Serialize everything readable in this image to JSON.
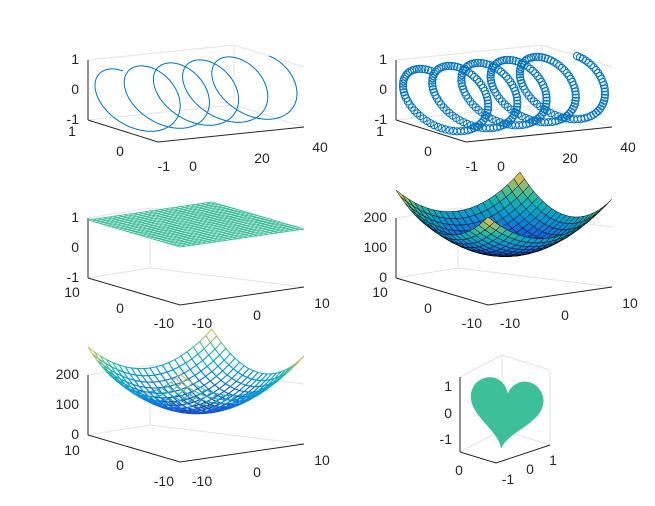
{
  "chart_data": [
    {
      "type": "3d-line",
      "title": "",
      "description_data": {
        "t_range": [
          0,
          10
        ],
        "turns": 5,
        "x": "t*4 (0..40)",
        "y": "sin",
        "z": "cos"
      },
      "axis_ranges": {
        "x": [
          0,
          40
        ],
        "y": [
          -1,
          1
        ],
        "z": [
          -1,
          1
        ]
      },
      "ticks": {
        "x": [
          "0",
          "20",
          "40"
        ],
        "y": [
          "-1",
          "0",
          "1"
        ],
        "z": [
          "-1",
          "0",
          "1"
        ]
      },
      "color": "#0072bd",
      "grid": false
    },
    {
      "type": "3d-scatter",
      "title": "",
      "axis_ranges": {
        "x": [
          0,
          40
        ],
        "y": [
          -1,
          1
        ],
        "z": [
          -1,
          1
        ]
      },
      "ticks": {
        "x": [
          "0",
          "20",
          "40"
        ],
        "y": [
          "-1",
          "0",
          "1"
        ],
        "z": [
          "-1",
          "0",
          "1"
        ]
      },
      "marker": "circle",
      "color": "#0072bd",
      "grid": false
    },
    {
      "type": "mesh",
      "title": "",
      "function": "z = 0",
      "axis_ranges": {
        "x": [
          -10,
          10
        ],
        "y": [
          -10,
          10
        ],
        "z": [
          -1,
          1
        ]
      },
      "ticks": {
        "x": [
          "-10",
          "0",
          "10"
        ],
        "y": [
          "-10",
          "0",
          "10"
        ],
        "z": [
          "-1",
          "0",
          "1"
        ]
      },
      "color": "#3dbf96",
      "grid": false
    },
    {
      "type": "surface",
      "title": "",
      "function": "z = x^2 + y^2",
      "axis_ranges": {
        "x": [
          -10,
          10
        ],
        "y": [
          -10,
          10
        ],
        "z": [
          0,
          200
        ]
      },
      "ticks": {
        "x": [
          "-10",
          "0",
          "10"
        ],
        "y": [
          "-10",
          "0",
          "10"
        ],
        "z": [
          "0",
          "100",
          "200"
        ]
      },
      "colormap": "parula",
      "grid": false
    },
    {
      "type": "mesh",
      "title": "",
      "function": "z = x^2 + y^2",
      "axis_ranges": {
        "x": [
          -10,
          10
        ],
        "y": [
          -10,
          10
        ],
        "z": [
          0,
          200
        ]
      },
      "ticks": {
        "x": [
          "-10",
          "0",
          "10"
        ],
        "y": [
          "-10",
          "0",
          "10"
        ],
        "z": [
          "0",
          "100",
          "200"
        ]
      },
      "colormap": "parula",
      "grid": false
    },
    {
      "type": "patch",
      "title": "",
      "shape": "heart",
      "axis_ranges": {
        "x": [
          -1,
          1
        ],
        "y": [
          0,
          1
        ],
        "z": [
          -1,
          1
        ]
      },
      "ticks": {
        "x": [
          "-1",
          "0",
          "1"
        ],
        "y": [
          "0"
        ],
        "z": [
          "-1",
          "0",
          "1"
        ]
      },
      "color": "#3dbf9b",
      "grid": false
    }
  ]
}
